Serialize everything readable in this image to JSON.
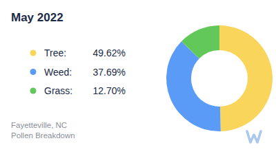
{
  "chart_data": {
    "type": "pie",
    "title": "May 2022",
    "categories": [
      "Tree:",
      "Weed:",
      "Grass:"
    ],
    "values": [
      49.62,
      37.69,
      12.7
    ],
    "value_labels": [
      "49.62%",
      "37.69%",
      "12.70%"
    ],
    "colors": [
      "#f9d55b",
      "#5b9bf8",
      "#63c85a"
    ],
    "annotations": [
      "Fayetteville, NC",
      "Pollen Breakdown"
    ],
    "legend": "left"
  }
}
